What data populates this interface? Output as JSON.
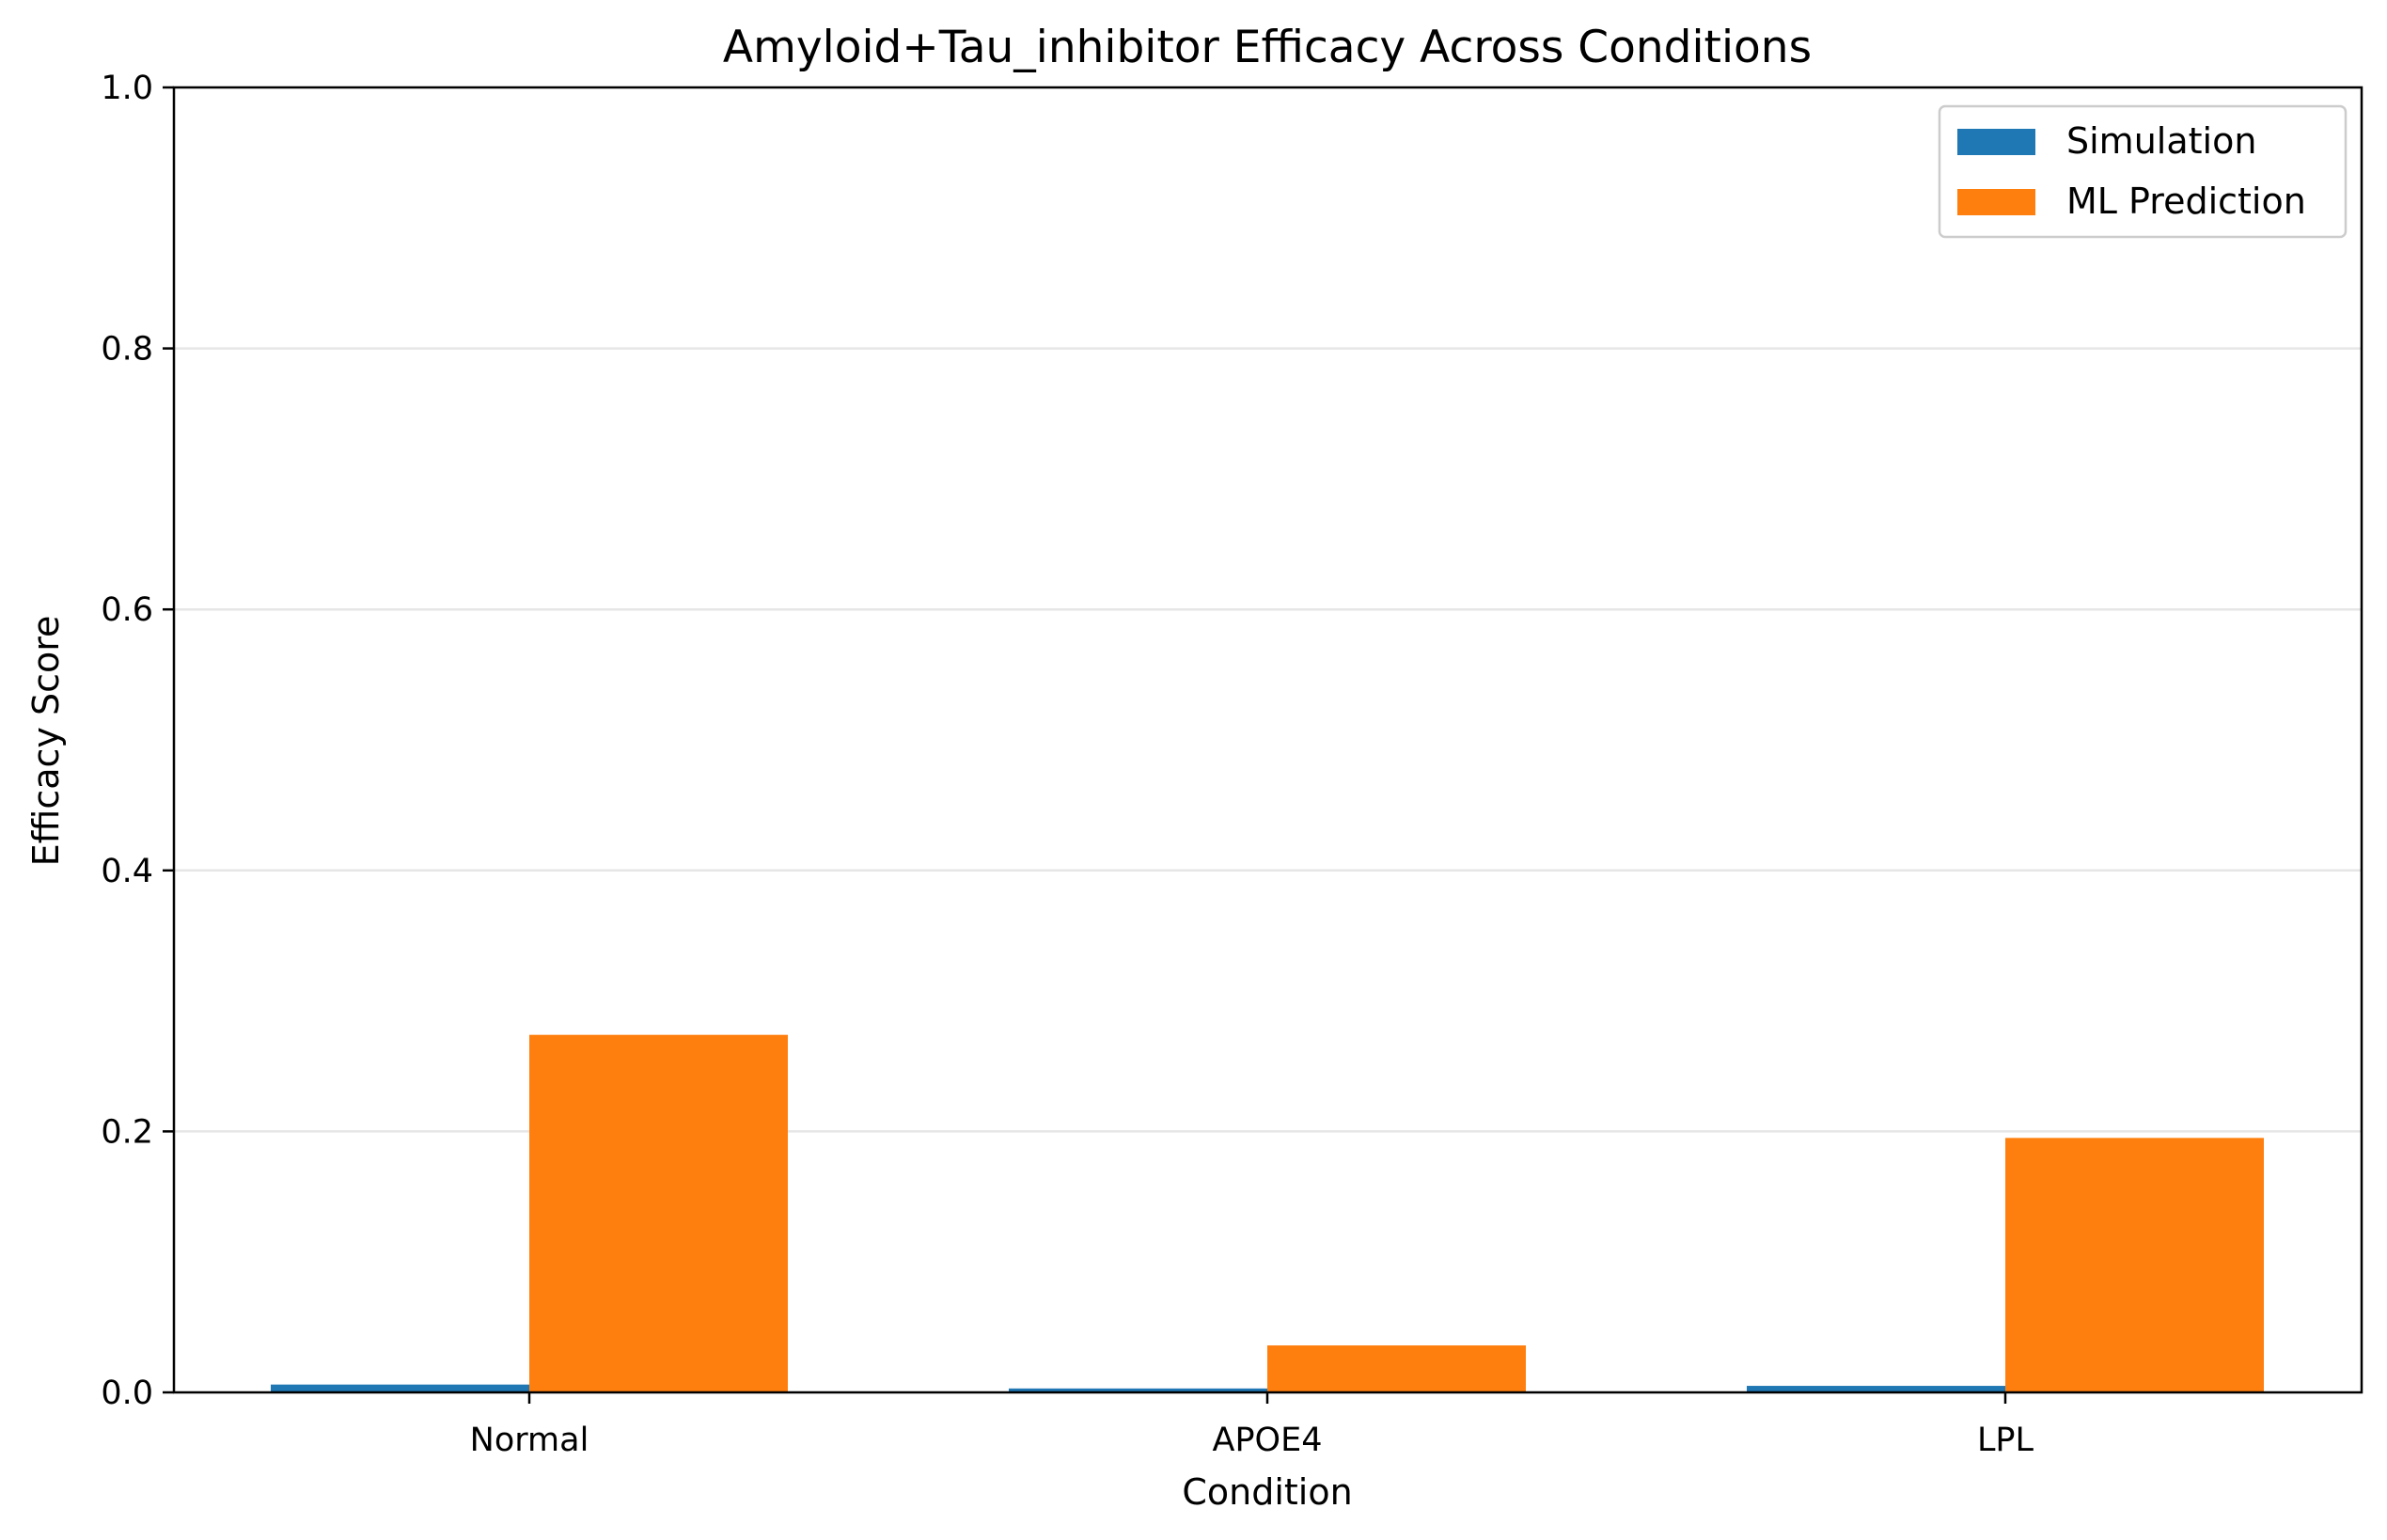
{
  "chart_data": {
    "type": "bar",
    "title": "Amyloid+Tau_inhibitor Efficacy Across Conditions",
    "xlabel": "Condition",
    "ylabel": "Efficacy Score",
    "categories": [
      "Normal",
      "APOE4",
      "LPL"
    ],
    "series": [
      {
        "name": "Simulation",
        "color": "#1f77b4",
        "values": [
          0.006,
          0.003,
          0.005
        ]
      },
      {
        "name": "ML Prediction",
        "color": "#ff7f0e",
        "values": [
          0.274,
          0.036,
          0.195
        ]
      }
    ],
    "ylim": [
      0,
      1.0
    ],
    "yticks": [
      "0.0",
      "0.2",
      "0.4",
      "0.6",
      "0.8",
      "1.0"
    ],
    "grid": "y",
    "legend_position": "top-right"
  }
}
